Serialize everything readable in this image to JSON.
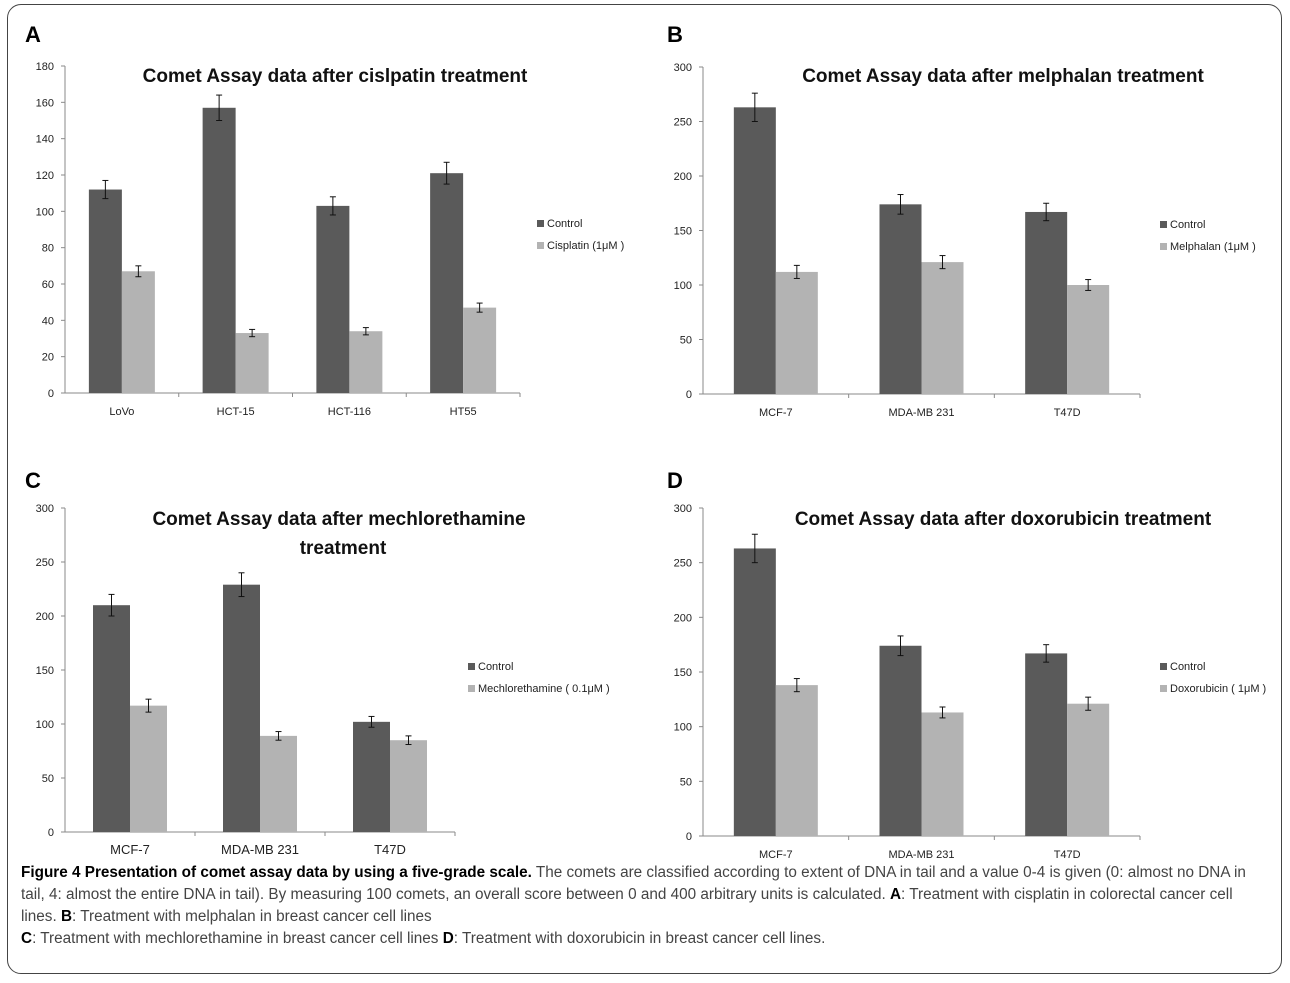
{
  "panels": [
    {
      "letter": "A",
      "title_lines": [
        "Comet Assay data after cislpatin treatment"
      ],
      "y_ticks": [
        "0",
        "20",
        "40",
        "60",
        "80",
        "100",
        "120",
        "140",
        "160",
        "180"
      ],
      "legend": [
        {
          "label": "Control",
          "color": "#5a5a5a"
        },
        {
          "label": "Cisplatin (1μM )",
          "color": "#b3b3b3"
        }
      ]
    },
    {
      "letter": "B",
      "title_lines": [
        "Comet Assay data after melphalan treatment"
      ],
      "y_ticks": [
        "0",
        "50",
        "100",
        "150",
        "200",
        "250",
        "300"
      ],
      "legend": [
        {
          "label": "Control",
          "color": "#5a5a5a"
        },
        {
          "label": "Melphalan (1μM )",
          "color": "#b3b3b3"
        }
      ]
    },
    {
      "letter": "C",
      "title_lines": [
        "Comet Assay data after mechlorethamine",
        "treatment"
      ],
      "y_ticks": [
        "0",
        "50",
        "100",
        "150",
        "200",
        "250",
        "300"
      ],
      "legend": [
        {
          "label": "Control",
          "color": "#5a5a5a"
        },
        {
          "label": "Mechlorethamine ( 0.1μM )",
          "color": "#b3b3b3"
        }
      ]
    },
    {
      "letter": "D",
      "title_lines": [
        "Comet Assay data after doxorubicin treatment"
      ],
      "y_ticks": [
        "0",
        "50",
        "100",
        "150",
        "200",
        "250",
        "300"
      ],
      "legend": [
        {
          "label": "Control",
          "color": "#5a5a5a"
        },
        {
          "label": "Doxorubicin ( 1μM )",
          "color": "#b3b3b3"
        }
      ]
    }
  ],
  "chart_data": [
    {
      "type": "bar",
      "title": "Comet Assay data after cislpatin treatment",
      "categories": [
        "LoVo",
        "HCT-15",
        "HCT-116",
        "HT55"
      ],
      "series": [
        {
          "name": "Control",
          "values": [
            112,
            157,
            103,
            121
          ],
          "errors": [
            5,
            7,
            5,
            6
          ]
        },
        {
          "name": "Cisplatin (1μM )",
          "values": [
            67,
            33,
            34,
            47
          ],
          "errors": [
            3,
            2,
            2,
            2.5
          ]
        }
      ],
      "ylim": [
        0,
        180
      ],
      "legend_position": "right"
    },
    {
      "type": "bar",
      "title": "Comet Assay data after melphalan treatment",
      "categories": [
        "MCF-7",
        "MDA-MB 231",
        "T47D"
      ],
      "series": [
        {
          "name": "Control",
          "values": [
            263,
            174,
            167
          ],
          "errors": [
            13,
            9,
            8
          ]
        },
        {
          "name": "Melphalan (1μM )",
          "values": [
            112,
            121,
            100
          ],
          "errors": [
            6,
            6,
            5
          ]
        }
      ],
      "ylim": [
        0,
        300
      ],
      "legend_position": "right"
    },
    {
      "type": "bar",
      "title": "Comet Assay data after mechlorethamine treatment",
      "categories": [
        "MCF-7",
        "MDA-MB 231",
        "T47D"
      ],
      "series": [
        {
          "name": "Control",
          "values": [
            210,
            229,
            102
          ],
          "errors": [
            10,
            11,
            5
          ]
        },
        {
          "name": "Mechlorethamine ( 0.1μM )",
          "values": [
            117,
            89,
            85
          ],
          "errors": [
            6,
            4,
            4
          ]
        }
      ],
      "ylim": [
        0,
        300
      ],
      "legend_position": "right"
    },
    {
      "type": "bar",
      "title": "Comet Assay data after doxorubicin treatment",
      "categories": [
        "MCF-7",
        "MDA-MB 231",
        "T47D"
      ],
      "series": [
        {
          "name": "Control",
          "values": [
            263,
            174,
            167
          ],
          "errors": [
            13,
            9,
            8
          ]
        },
        {
          "name": "Doxorubicin ( 1μM )",
          "values": [
            138,
            113,
            121
          ],
          "errors": [
            6,
            5,
            6
          ]
        }
      ],
      "ylim": [
        0,
        300
      ],
      "legend_position": "right"
    }
  ],
  "caption": {
    "title": "Figure 4 Presentation of comet assay data by using a five-grade scale.",
    "body": " The comets are classified according to extent of DNA in tail and a value 0-4 is given (0: almost no DNA in tail, 4: almost the entire DNA in tail). By measuring 100 comets, an overall score between 0 and 400 arbitrary units is calculated. ",
    "items": [
      {
        "letter": "A",
        "text": ": Treatment with cisplatin in colorectal cancer cell lines. "
      },
      {
        "letter": "B",
        "text": ": Treatment with melphalan in breast cancer cell lines"
      },
      {
        "letter": "C",
        "text": ": Treatment with mechlorethamine in breast cancer cell lines "
      },
      {
        "letter": "D",
        "text": ": Treatment with doxorubicin in breast cancer cell lines."
      }
    ]
  }
}
